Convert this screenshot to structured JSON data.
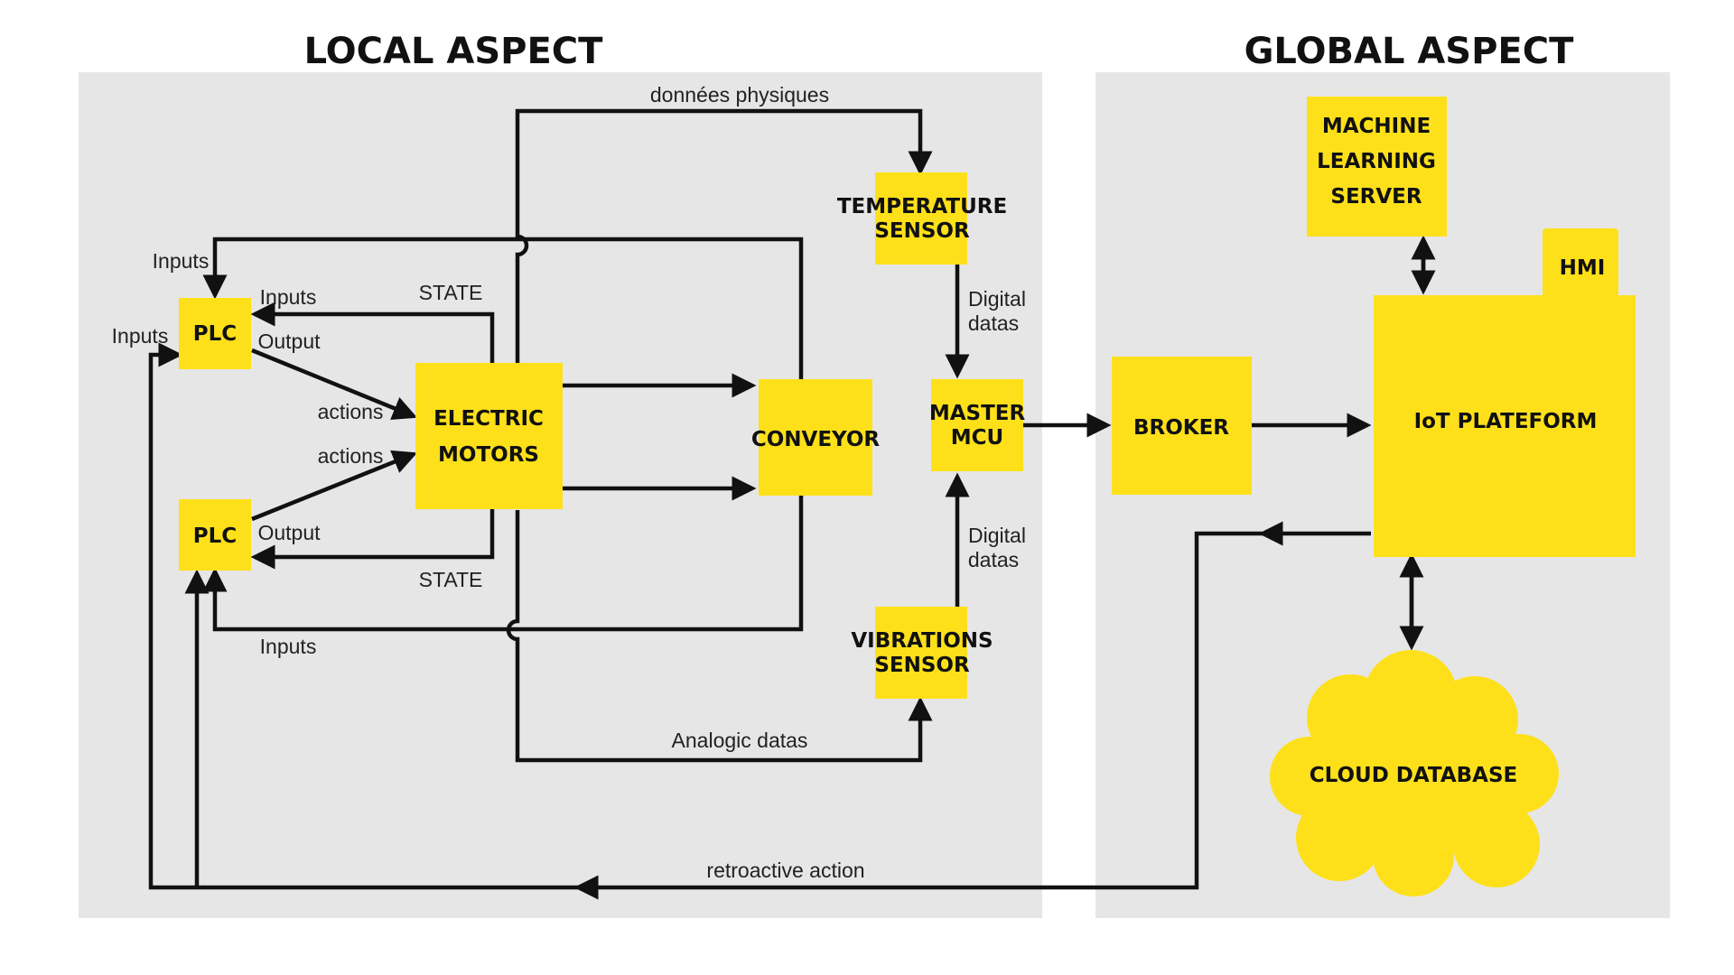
{
  "titles": {
    "local": "LOCAL ASPECT",
    "global": "GLOBAL ASPECT"
  },
  "colors": {
    "panel": "#e6e6e6",
    "node": "#fde01a",
    "line": "#111111"
  },
  "nodes": {
    "plc_top": "PLC",
    "plc_bottom": "PLC",
    "electric_motors": [
      "ELECTRIC",
      "MOTORS"
    ],
    "conveyor": "CONVEYOR",
    "temperature_sensor": [
      "TEMPERATURE",
      "SENSOR"
    ],
    "vibrations_sensor": [
      "VIBRATIONS",
      "SENSOR"
    ],
    "master_mcu": [
      "MASTER",
      "MCU"
    ],
    "broker": "BROKER",
    "iot_platform": "IoT PLATEFORM",
    "hmi": "HMI",
    "ml_server": [
      "MACHINE",
      "LEARNING",
      "SERVER"
    ],
    "cloud_database": "CLOUD DATABASE"
  },
  "labels": {
    "donnees_physiques": "données physiques",
    "inputs_top_outer": "Inputs",
    "inputs_left": "Inputs",
    "inputs_top_inner": "Inputs",
    "state_top": "STATE",
    "output_top": "Output",
    "actions_top": "actions",
    "actions_bottom": "actions",
    "output_bottom": "Output",
    "state_bottom": "STATE",
    "inputs_bottom": "Inputs",
    "digital_datas_top": [
      "Digital",
      "datas"
    ],
    "digital_datas_bottom": [
      "Digital",
      "datas"
    ],
    "analogic_datas": "Analogic datas",
    "retroactive_action": "retroactive action"
  }
}
